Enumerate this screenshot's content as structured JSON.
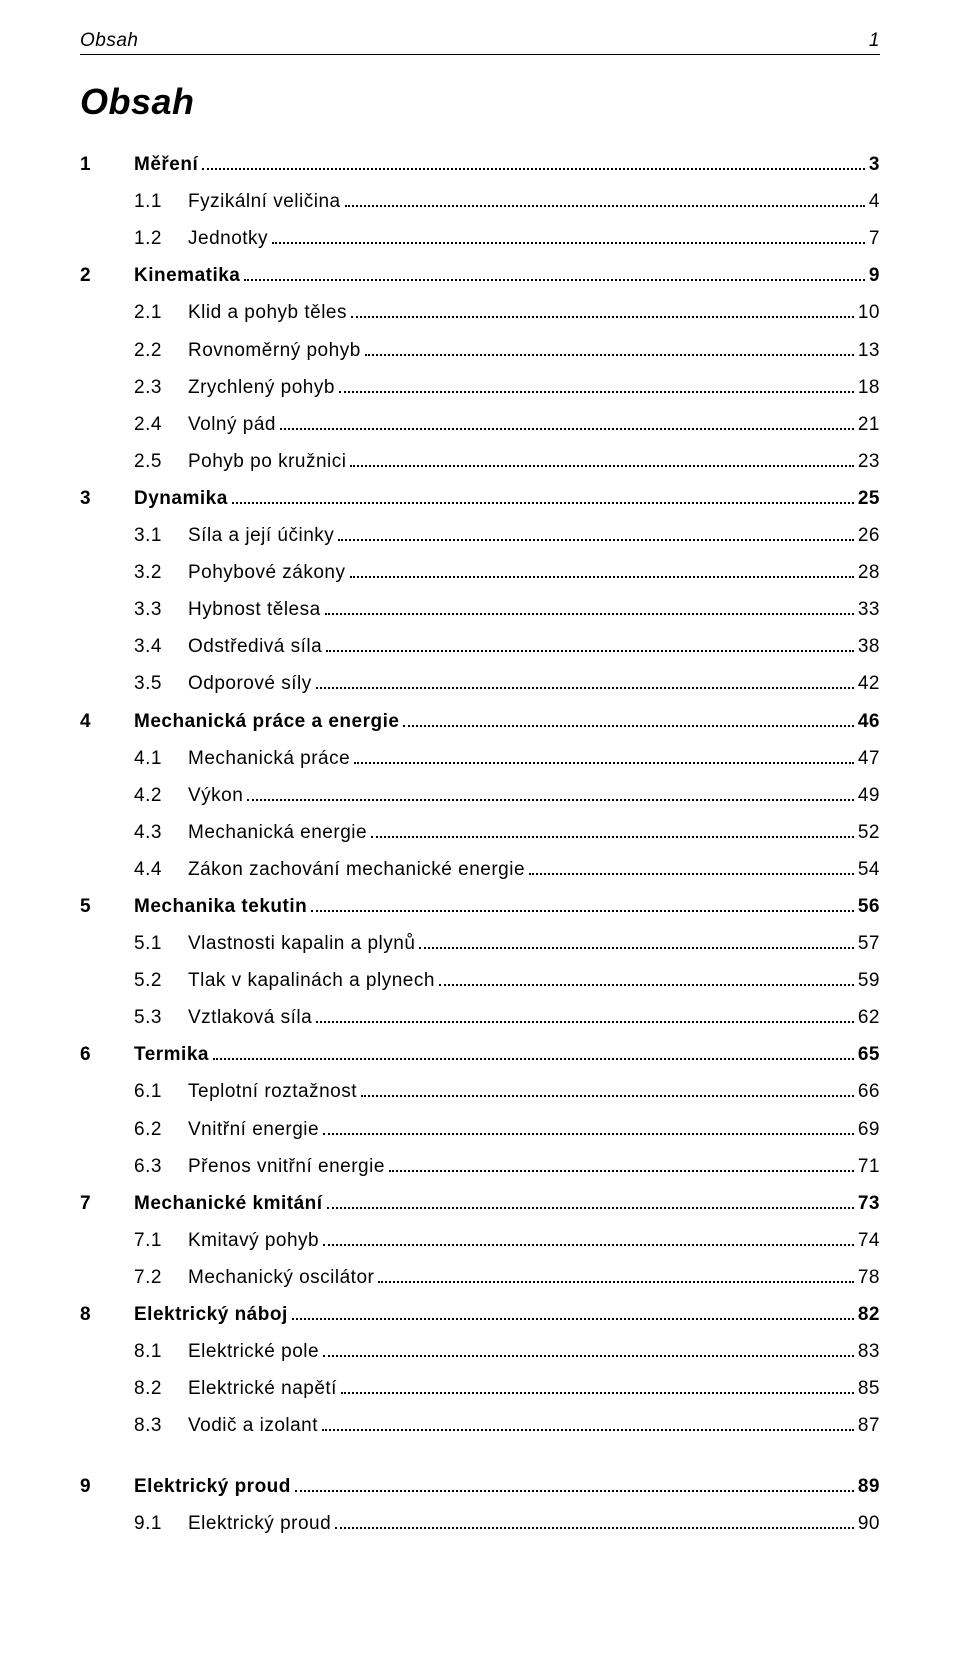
{
  "header": {
    "label": "Obsah",
    "page": "1"
  },
  "title": "Obsah",
  "toc": [
    {
      "type": "chapter",
      "num": "1",
      "label": "Měření",
      "page": "3"
    },
    {
      "type": "section",
      "num": "1.1",
      "label": "Fyzikální veličina",
      "page": "4"
    },
    {
      "type": "section",
      "num": "1.2",
      "label": "Jednotky",
      "page": "7"
    },
    {
      "type": "chapter",
      "num": "2",
      "label": "Kinematika",
      "page": "9"
    },
    {
      "type": "section",
      "num": "2.1",
      "label": "Klid a pohyb těles",
      "page": "10"
    },
    {
      "type": "section",
      "num": "2.2",
      "label": "Rovnoměrný pohyb",
      "page": "13"
    },
    {
      "type": "section",
      "num": "2.3",
      "label": "Zrychlený pohyb",
      "page": "18"
    },
    {
      "type": "section",
      "num": "2.4",
      "label": "Volný pád",
      "page": "21"
    },
    {
      "type": "section",
      "num": "2.5",
      "label": "Pohyb po kružnici",
      "page": "23"
    },
    {
      "type": "chapter",
      "num": "3",
      "label": "Dynamika",
      "page": "25"
    },
    {
      "type": "section",
      "num": "3.1",
      "label": "Síla a její účinky",
      "page": "26"
    },
    {
      "type": "section",
      "num": "3.2",
      "label": "Pohybové zákony",
      "page": "28"
    },
    {
      "type": "section",
      "num": "3.3",
      "label": "Hybnost tělesa",
      "page": "33"
    },
    {
      "type": "section",
      "num": "3.4",
      "label": "Odstředivá síla",
      "page": "38"
    },
    {
      "type": "section",
      "num": "3.5",
      "label": "Odporové síly",
      "page": "42"
    },
    {
      "type": "chapter",
      "num": "4",
      "label": "Mechanická práce a energie",
      "page": "46"
    },
    {
      "type": "section",
      "num": "4.1",
      "label": "Mechanická práce",
      "page": "47"
    },
    {
      "type": "section",
      "num": "4.2",
      "label": "Výkon",
      "page": "49"
    },
    {
      "type": "section",
      "num": "4.3",
      "label": "Mechanická energie",
      "page": "52"
    },
    {
      "type": "section",
      "num": "4.4",
      "label": "Zákon zachování mechanické energie",
      "page": "54"
    },
    {
      "type": "chapter",
      "num": "5",
      "label": "Mechanika tekutin",
      "page": "56"
    },
    {
      "type": "section",
      "num": "5.1",
      "label": "Vlastnosti kapalin a plynů",
      "page": "57"
    },
    {
      "type": "section",
      "num": "5.2",
      "label": "Tlak v kapalinách a plynech",
      "page": "59"
    },
    {
      "type": "section",
      "num": "5.3",
      "label": "Vztlaková síla",
      "page": "62"
    },
    {
      "type": "chapter",
      "num": "6",
      "label": "Termika",
      "page": "65"
    },
    {
      "type": "section",
      "num": "6.1",
      "label": "Teplotní roztažnost",
      "page": "66"
    },
    {
      "type": "section",
      "num": "6.2",
      "label": "Vnitřní energie",
      "page": "69"
    },
    {
      "type": "section",
      "num": "6.3",
      "label": "Přenos vnitřní energie",
      "page": "71"
    },
    {
      "type": "chapter",
      "num": "7",
      "label": "Mechanické kmitání",
      "page": "73"
    },
    {
      "type": "section",
      "num": "7.1",
      "label": "Kmitavý pohyb",
      "page": "74"
    },
    {
      "type": "section",
      "num": "7.2",
      "label": "Mechanický oscilátor",
      "page": "78"
    },
    {
      "type": "chapter",
      "num": "8",
      "label": "Elektrický náboj",
      "page": "82"
    },
    {
      "type": "section",
      "num": "8.1",
      "label": "Elektrické pole",
      "page": "83"
    },
    {
      "type": "section",
      "num": "8.2",
      "label": "Elektrické napětí",
      "page": "85"
    },
    {
      "type": "section",
      "num": "8.3",
      "label": "Vodič a izolant",
      "page": "87"
    },
    {
      "type": "chapter",
      "num": "9",
      "label": "Elektrický proud",
      "page": "89"
    },
    {
      "type": "section",
      "num": "9.1",
      "label": "Elektrický proud",
      "page": "90"
    }
  ]
}
